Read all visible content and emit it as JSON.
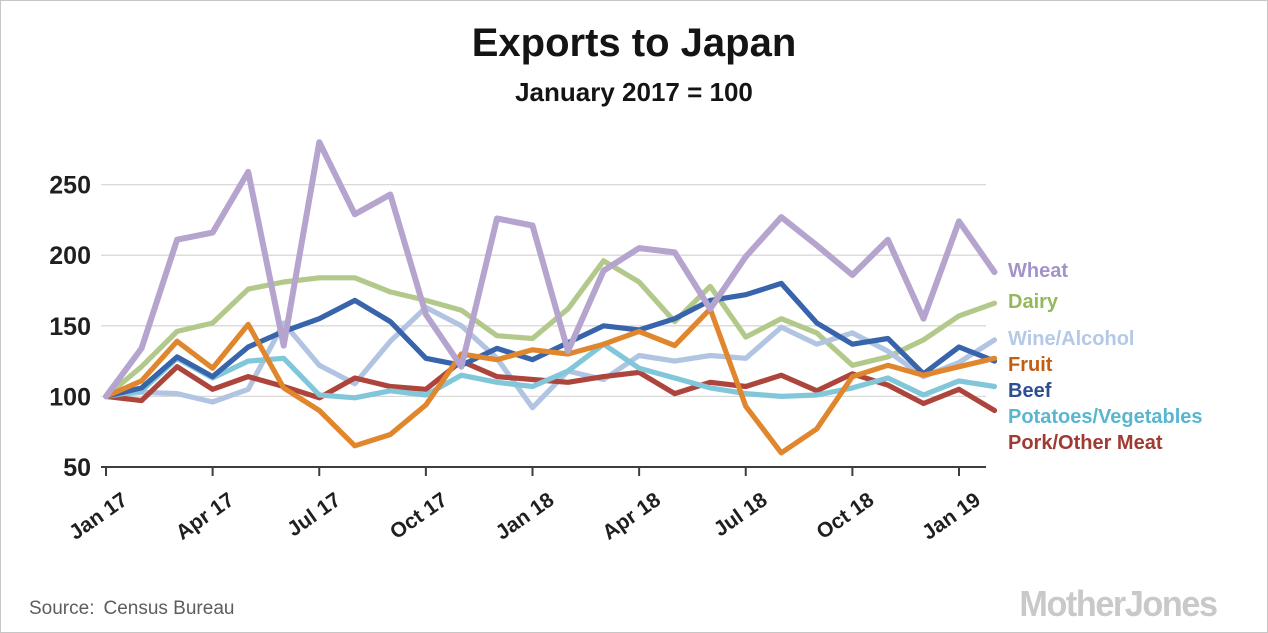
{
  "header": {
    "title": "Exports to Japan",
    "subtitle": "January 2017 = 100"
  },
  "footer": {
    "source_label": "Source:",
    "source_value": "Census Bureau",
    "logo_text": "MotherJones",
    "logo_color": "#c9c9c9",
    "source_color": "#5d5d5d"
  },
  "style": {
    "grid_color": "#d9d9d9",
    "axis_color": "#3d3d3d",
    "text_color": "#1f1f1f",
    "background": "#ffffff"
  },
  "chart_data": {
    "type": "line",
    "title": "Exports to Japan",
    "subtitle": "January 2017 = 100",
    "xlabel": "",
    "ylabel": "",
    "ylim": [
      50,
      285
    ],
    "y_ticks": [
      50,
      100,
      150,
      200,
      250
    ],
    "grid": "horizontal-only",
    "legend_position": "right",
    "x": [
      "Jan 17",
      "Feb 17",
      "Mar 17",
      "Apr 17",
      "May 17",
      "Jun 17",
      "Jul 17",
      "Aug 17",
      "Sep 17",
      "Oct 17",
      "Nov 17",
      "Dec 17",
      "Jan 18",
      "Feb 18",
      "Mar 18",
      "Apr 18",
      "May 18",
      "Jun 18",
      "Jul 18",
      "Aug 18",
      "Sep 18",
      "Oct 18",
      "Nov 18",
      "Dec 18",
      "Jan 19",
      "Feb 19"
    ],
    "x_tick_every": 3,
    "series": [
      {
        "name": "Wheat",
        "color": "#b5a4ce",
        "legend_color": "#a294c6",
        "values": [
          100,
          134,
          211,
          216,
          259,
          136,
          280,
          229,
          243,
          158,
          121,
          226,
          221,
          132,
          189,
          205,
          202,
          162,
          199,
          227,
          207,
          186,
          211,
          155,
          224,
          188
        ]
      },
      {
        "name": "Dairy",
        "color": "#b2c98b",
        "legend_color": "#95b85a",
        "values": [
          100,
          121,
          146,
          152,
          176,
          181,
          184,
          184,
          174,
          168,
          161,
          143,
          141,
          162,
          196,
          181,
          153,
          178,
          142,
          155,
          145,
          122,
          128,
          140,
          157,
          166
        ]
      },
      {
        "name": "Wine/Alcohol",
        "color": "#b1c4e2",
        "legend_color": "#b4c9e6",
        "values": [
          100,
          103,
          102,
          96,
          105,
          152,
          122,
          109,
          139,
          163,
          150,
          127,
          92,
          118,
          112,
          129,
          125,
          129,
          127,
          149,
          137,
          145,
          132,
          114,
          124,
          140
        ]
      },
      {
        "name": "Fruit",
        "color": "#e0862d",
        "legend_color": "#c55d11",
        "values": [
          100,
          111,
          139,
          120,
          151,
          106,
          90,
          65,
          73,
          94,
          130,
          126,
          133,
          130,
          137,
          146,
          136,
          162,
          93,
          60,
          77,
          114,
          122,
          115,
          121,
          127
        ]
      },
      {
        "name": "Beef",
        "color": "#3764aa",
        "legend_color": "#2d4f92",
        "values": [
          100,
          106,
          128,
          114,
          135,
          146,
          155,
          168,
          153,
          127,
          122,
          134,
          126,
          138,
          150,
          147,
          155,
          168,
          172,
          180,
          152,
          137,
          141,
          116,
          135,
          125
        ]
      },
      {
        "name": "Potatoes/Vegetables",
        "color": "#82c7d9",
        "legend_color": "#58b7cf",
        "values": [
          100,
          104,
          127,
          113,
          125,
          127,
          101,
          99,
          104,
          101,
          115,
          110,
          107,
          118,
          137,
          120,
          113,
          106,
          102,
          100,
          101,
          106,
          113,
          101,
          111,
          107
        ]
      },
      {
        "name": "Pork/Other Meat",
        "color": "#ad453c",
        "legend_color": "#9e3b32",
        "values": [
          100,
          97,
          121,
          105,
          114,
          107,
          99,
          113,
          107,
          105,
          125,
          114,
          112,
          110,
          114,
          117,
          102,
          110,
          107,
          115,
          104,
          116,
          108,
          95,
          105,
          90
        ]
      }
    ]
  }
}
